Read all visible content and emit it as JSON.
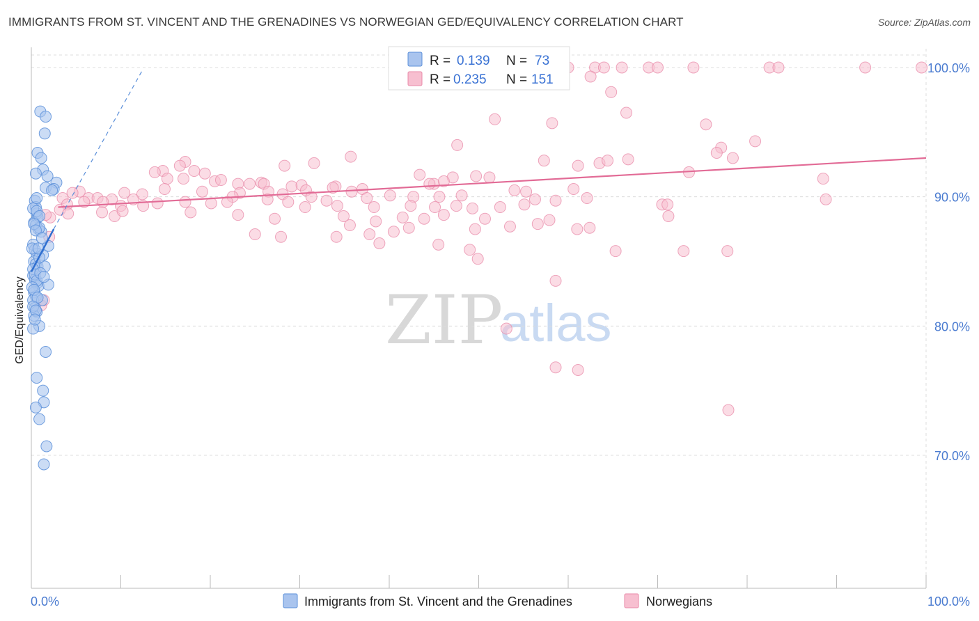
{
  "title": "IMMIGRANTS FROM ST. VINCENT AND THE GRENADINES VS NORWEGIAN GED/EQUIVALENCY CORRELATION CHART",
  "source": "Source: ZipAtlas.com",
  "watermark": {
    "zip": "ZIP",
    "atlas": "atlas"
  },
  "legend": {
    "r_label": "R =",
    "n_label": "N =",
    "rows": [
      {
        "r": "0.139",
        "n": "73",
        "color": "#a9c4ee",
        "stroke": "#5b8fd9"
      },
      {
        "r": "0.235",
        "n": "151",
        "color": "#f7bfd0",
        "stroke": "#e88aa8"
      }
    ]
  },
  "bottom_legend": [
    {
      "label": "Immigrants from St. Vincent and the Grenadines",
      "color": "#a9c4ee",
      "stroke": "#5b8fd9"
    },
    {
      "label": "Norwegians",
      "color": "#f7bfd0",
      "stroke": "#e88aa8"
    }
  ],
  "chart_data": {
    "type": "scatter",
    "title": "IMMIGRANTS FROM ST. VINCENT AND THE GRENADINES VS NORWEGIAN GED/EQUIVALENCY CORRELATION CHART",
    "xlabel": "",
    "ylabel": "GED/Equivalency",
    "xlim": [
      0,
      100
    ],
    "ylim": [
      60,
      101.5
    ],
    "x_tick_labels": [
      "0.0%",
      "100.0%"
    ],
    "y_ticks": [
      70,
      80,
      90,
      100
    ],
    "y_tick_labels": [
      "70.0%",
      "80.0%",
      "90.0%",
      "100.0%"
    ],
    "grid": true,
    "series": [
      {
        "name": "Immigrants from St. Vincent and the Grenadines",
        "color": "#5b8fd9",
        "fill": "#a9c4ee",
        "trend": {
          "x": [
            0,
            2.5
          ],
          "y": [
            84.2,
            87.5
          ],
          "extended_to": [
            12.5,
            99.9
          ]
        },
        "points": [
          [
            0.4,
            89.7
          ],
          [
            0.5,
            89.2
          ],
          [
            0.6,
            88.7
          ],
          [
            0.7,
            88.4
          ],
          [
            0.3,
            88.0
          ],
          [
            0.5,
            87.8
          ],
          [
            0.8,
            87.5
          ],
          [
            1.1,
            87.3
          ],
          [
            0.9,
            87.6
          ],
          [
            0.2,
            86.3
          ],
          [
            0.4,
            85.9
          ],
          [
            0.6,
            85.6
          ],
          [
            1.3,
            85.5
          ],
          [
            1.9,
            86.2
          ],
          [
            0.3,
            85.0
          ],
          [
            0.5,
            84.8
          ],
          [
            0.7,
            84.6
          ],
          [
            1.5,
            84.6
          ],
          [
            0.2,
            83.9
          ],
          [
            0.4,
            83.6
          ],
          [
            0.6,
            83.3
          ],
          [
            0.8,
            83.1
          ],
          [
            1.9,
            83.2
          ],
          [
            0.3,
            82.6
          ],
          [
            0.5,
            82.3
          ],
          [
            0.2,
            82.0
          ],
          [
            1.2,
            82.0
          ],
          [
            0.4,
            81.4
          ],
          [
            0.6,
            81.1
          ],
          [
            0.3,
            80.8
          ],
          [
            0.9,
            80.0
          ],
          [
            0.2,
            79.8
          ],
          [
            1.6,
            78.0
          ],
          [
            0.6,
            76.0
          ],
          [
            1.3,
            75.0
          ],
          [
            1.4,
            74.1
          ],
          [
            0.5,
            73.7
          ],
          [
            0.9,
            72.8
          ],
          [
            1.7,
            70.7
          ],
          [
            1.4,
            69.3
          ],
          [
            1.0,
            96.6
          ],
          [
            1.6,
            96.2
          ],
          [
            1.5,
            94.9
          ],
          [
            0.7,
            93.4
          ],
          [
            1.1,
            93.0
          ],
          [
            1.3,
            92.1
          ],
          [
            0.5,
            91.8
          ],
          [
            1.8,
            91.6
          ],
          [
            2.8,
            91.1
          ],
          [
            1.6,
            90.7
          ],
          [
            2.5,
            90.6
          ],
          [
            0.2,
            89.1
          ],
          [
            0.6,
            88.9
          ],
          [
            0.9,
            88.5
          ],
          [
            0.3,
            87.9
          ],
          [
            0.5,
            87.4
          ],
          [
            0.1,
            86.0
          ],
          [
            0.2,
            84.4
          ],
          [
            0.4,
            84.0
          ],
          [
            0.6,
            83.5
          ],
          [
            0.1,
            83.0
          ],
          [
            0.3,
            82.8
          ],
          [
            0.7,
            82.2
          ],
          [
            0.2,
            81.5
          ],
          [
            0.5,
            81.2
          ],
          [
            0.4,
            80.5
          ],
          [
            0.9,
            85.3
          ],
          [
            1.0,
            84.1
          ],
          [
            1.2,
            86.8
          ],
          [
            0.8,
            86.0
          ],
          [
            1.4,
            83.8
          ],
          [
            0.6,
            89.9
          ],
          [
            2.3,
            90.5
          ]
        ]
      },
      {
        "name": "Norwegians",
        "color": "#e88aa8",
        "fill": "#f7bfd0",
        "trend": {
          "x": [
            3,
            100
          ],
          "y": [
            89.2,
            93.0
          ]
        },
        "points": [
          [
            60.0,
            100.0
          ],
          [
            63.0,
            100.0
          ],
          [
            64.0,
            100.0
          ],
          [
            66.0,
            100.0
          ],
          [
            69.0,
            100.0
          ],
          [
            70.0,
            100.0
          ],
          [
            74.0,
            100.0
          ],
          [
            82.5,
            100.0
          ],
          [
            83.5,
            100.0
          ],
          [
            93.2,
            100.0
          ],
          [
            99.5,
            100.0
          ],
          [
            62.5,
            99.3
          ],
          [
            64.8,
            98.1
          ],
          [
            66.5,
            96.5
          ],
          [
            51.8,
            96.0
          ],
          [
            58.2,
            95.7
          ],
          [
            75.4,
            95.6
          ],
          [
            77.1,
            93.8
          ],
          [
            80.9,
            94.3
          ],
          [
            47.6,
            94.0
          ],
          [
            35.7,
            93.1
          ],
          [
            76.6,
            93.4
          ],
          [
            78.4,
            93.0
          ],
          [
            57.3,
            92.8
          ],
          [
            61.1,
            92.4
          ],
          [
            63.5,
            92.6
          ],
          [
            64.4,
            92.8
          ],
          [
            66.7,
            92.9
          ],
          [
            28.3,
            92.4
          ],
          [
            31.6,
            92.6
          ],
          [
            17.2,
            92.7
          ],
          [
            16.6,
            92.4
          ],
          [
            14.7,
            92.0
          ],
          [
            13.8,
            91.9
          ],
          [
            18.2,
            92.0
          ],
          [
            19.4,
            91.8
          ],
          [
            15.2,
            91.4
          ],
          [
            17.0,
            91.4
          ],
          [
            20.5,
            91.2
          ],
          [
            73.5,
            91.9
          ],
          [
            43.4,
            91.7
          ],
          [
            49.7,
            91.6
          ],
          [
            51.2,
            91.5
          ],
          [
            47.1,
            91.5
          ],
          [
            45.0,
            91.0
          ],
          [
            46.1,
            91.2
          ],
          [
            44.5,
            91.0
          ],
          [
            25.7,
            91.1
          ],
          [
            23.1,
            91.0
          ],
          [
            24.4,
            91.0
          ],
          [
            21.2,
            91.3
          ],
          [
            26.0,
            91.0
          ],
          [
            29.1,
            90.8
          ],
          [
            30.2,
            90.9
          ],
          [
            34.0,
            90.8
          ],
          [
            37.0,
            90.6
          ],
          [
            35.8,
            90.4
          ],
          [
            33.7,
            90.7
          ],
          [
            30.7,
            90.5
          ],
          [
            26.5,
            90.4
          ],
          [
            23.3,
            90.3
          ],
          [
            19.1,
            90.4
          ],
          [
            14.9,
            90.6
          ],
          [
            12.4,
            90.2
          ],
          [
            10.4,
            90.3
          ],
          [
            5.4,
            90.4
          ],
          [
            4.6,
            90.3
          ],
          [
            3.5,
            89.9
          ],
          [
            6.4,
            89.9
          ],
          [
            7.4,
            89.9
          ],
          [
            9.0,
            89.8
          ],
          [
            11.4,
            89.8
          ],
          [
            17.2,
            89.6
          ],
          [
            22.5,
            90.0
          ],
          [
            20.1,
            89.5
          ],
          [
            26.4,
            89.8
          ],
          [
            28.1,
            90.2
          ],
          [
            31.3,
            90.0
          ],
          [
            33.0,
            89.7
          ],
          [
            37.5,
            89.9
          ],
          [
            40.1,
            90.1
          ],
          [
            42.7,
            90.0
          ],
          [
            45.6,
            90.0
          ],
          [
            48.1,
            90.1
          ],
          [
            54.0,
            90.5
          ],
          [
            55.3,
            90.4
          ],
          [
            56.3,
            89.8
          ],
          [
            58.6,
            89.7
          ],
          [
            60.6,
            90.6
          ],
          [
            62.1,
            89.9
          ],
          [
            70.5,
            89.4
          ],
          [
            71.1,
            89.4
          ],
          [
            88.5,
            91.4
          ],
          [
            88.8,
            89.8
          ],
          [
            4.0,
            89.4
          ],
          [
            5.9,
            89.6
          ],
          [
            8.0,
            89.6
          ],
          [
            10.0,
            89.3
          ],
          [
            12.5,
            89.3
          ],
          [
            14.1,
            89.5
          ],
          [
            21.9,
            89.6
          ],
          [
            28.7,
            89.6
          ],
          [
            30.6,
            89.2
          ],
          [
            34.2,
            89.3
          ],
          [
            38.3,
            89.2
          ],
          [
            42.4,
            89.3
          ],
          [
            45.1,
            89.2
          ],
          [
            47.5,
            89.3
          ],
          [
            49.3,
            89.1
          ],
          [
            52.4,
            89.2
          ],
          [
            55.1,
            89.4
          ],
          [
            3.2,
            89.0
          ],
          [
            7.9,
            88.8
          ],
          [
            9.3,
            88.5
          ],
          [
            10.2,
            88.9
          ],
          [
            17.8,
            88.8
          ],
          [
            23.1,
            88.6
          ],
          [
            27.2,
            88.3
          ],
          [
            34.9,
            88.5
          ],
          [
            38.5,
            88.1
          ],
          [
            41.5,
            88.4
          ],
          [
            43.9,
            88.3
          ],
          [
            46.1,
            88.6
          ],
          [
            50.7,
            88.3
          ],
          [
            57.9,
            88.2
          ],
          [
            71.2,
            88.5
          ],
          [
            4.1,
            88.7
          ],
          [
            2.1,
            88.4
          ],
          [
            1.6,
            88.6
          ],
          [
            35.6,
            87.8
          ],
          [
            42.2,
            87.6
          ],
          [
            49.6,
            87.5
          ],
          [
            53.5,
            87.7
          ],
          [
            56.6,
            87.9
          ],
          [
            61.0,
            87.5
          ],
          [
            62.4,
            87.6
          ],
          [
            25.0,
            87.1
          ],
          [
            27.9,
            86.9
          ],
          [
            34.1,
            86.9
          ],
          [
            37.8,
            87.1
          ],
          [
            40.5,
            87.3
          ],
          [
            38.9,
            86.4
          ],
          [
            45.5,
            86.3
          ],
          [
            49.0,
            85.9
          ],
          [
            65.3,
            85.8
          ],
          [
            72.9,
            85.8
          ],
          [
            77.8,
            85.8
          ],
          [
            49.9,
            85.2
          ],
          [
            58.6,
            83.5
          ],
          [
            53.1,
            79.8
          ],
          [
            58.6,
            76.8
          ],
          [
            61.1,
            76.6
          ],
          [
            77.9,
            73.5
          ],
          [
            1.1,
            81.6
          ],
          [
            1.4,
            82.0
          ],
          [
            2.0,
            86.9
          ]
        ]
      }
    ]
  }
}
